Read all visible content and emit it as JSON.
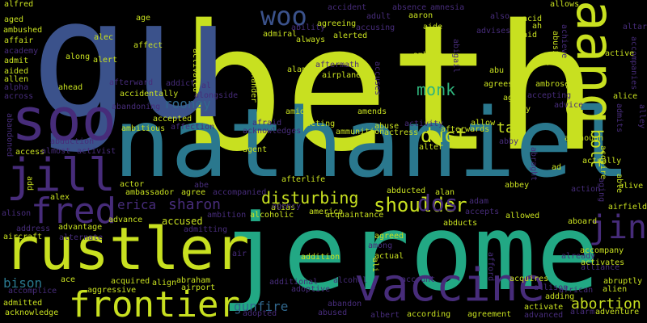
{
  "palette": {
    "background": "#000000",
    "lime": "#c8e020",
    "teal": "#2a788e",
    "blue": "#3b528b",
    "indigo": "#472c7a",
    "purple": "#440154",
    "green": "#22a884",
    "mint": "#7ad151",
    "sea": "#2fb47c",
    "navy": "#31688e"
  },
  "words": [
    "beth",
    "gu",
    "nathaniel",
    "jerome",
    "rustler",
    "aang",
    "soo",
    "jill",
    "fred",
    "vaccine",
    "frontier",
    "woo",
    "jin",
    "shoulder",
    "dos",
    "disturbing",
    "duct",
    "monk",
    "bolt",
    "sharon",
    "tae",
    "abortion",
    "rooney",
    "gunfire",
    "bison",
    "erica",
    "accused",
    "alfred",
    "age",
    "accident",
    "absence",
    "amnesia",
    "allows",
    "aged",
    "adult",
    "aaron",
    "also",
    "acid",
    "ambushed",
    "alec",
    "ability",
    "agreeing",
    "abigail",
    "aide",
    "advises",
    "ah",
    "aid",
    "altar",
    "affair",
    "admiral",
    "always",
    "accusing",
    "abusive",
    "accompanies",
    "academy",
    "affect",
    "alerted",
    "achieve",
    "admit",
    "along",
    "alert",
    "ambush",
    "adopt",
    "active",
    "aided",
    "activated",
    "alexander",
    "aftermath",
    "abu",
    "alone",
    "allen",
    "alamein",
    "airplane",
    "ahead",
    "addict",
    "agrees",
    "ambrose",
    "alpha",
    "afterward",
    "al",
    "accidentally",
    "alongside",
    "accepting",
    "alice",
    "across",
    "abandoning",
    "advice",
    "amid",
    "accepted",
    "afraid",
    "alley",
    "admits",
    "affection",
    "acting",
    "ambitious",
    "abuse",
    "activity",
    "ally",
    "ago",
    "amends",
    "accuses",
    "allow",
    "acknowledges",
    "abandoned",
    "ammunition",
    "actress",
    "afterwards",
    "although",
    "acquire",
    "abduction",
    "alter",
    "agent",
    "access",
    "almost",
    "activist",
    "abby",
    "actually",
    "abraght",
    "ad",
    "abe",
    "afterlife",
    "ambassador",
    "actor",
    "add",
    "accompanied",
    "agree",
    "abbey",
    "able",
    "alive",
    "action",
    "aging",
    "alex",
    "alias",
    "abducted",
    "alan",
    "adam",
    "alison",
    "ambition",
    "alcoholic",
    "agency",
    "accepts",
    "allowed",
    "airfield",
    "advance",
    "acquaintance",
    "america",
    "abducts",
    "aboard",
    "address",
    "admitting",
    "advantage",
    "aircraft",
    "alternate",
    "accompany",
    "agreed",
    "among",
    "afford",
    "already",
    "alliance",
    "activates",
    "air",
    "actual",
    "addition",
    "ace",
    "ali",
    "account",
    "acquires",
    "abruptly",
    "acquired",
    "abraham",
    "align",
    "alien",
    "aggressive",
    "allison",
    "accomplice",
    "airport",
    "additional",
    "alcohol",
    "african",
    "adding",
    "adoptive",
    "admitted",
    "abandon",
    "activate",
    "acknowledge",
    "abused",
    "alarm",
    "adventure",
    "agreement",
    "adopted",
    "albert",
    "according",
    "advanced"
  ]
}
